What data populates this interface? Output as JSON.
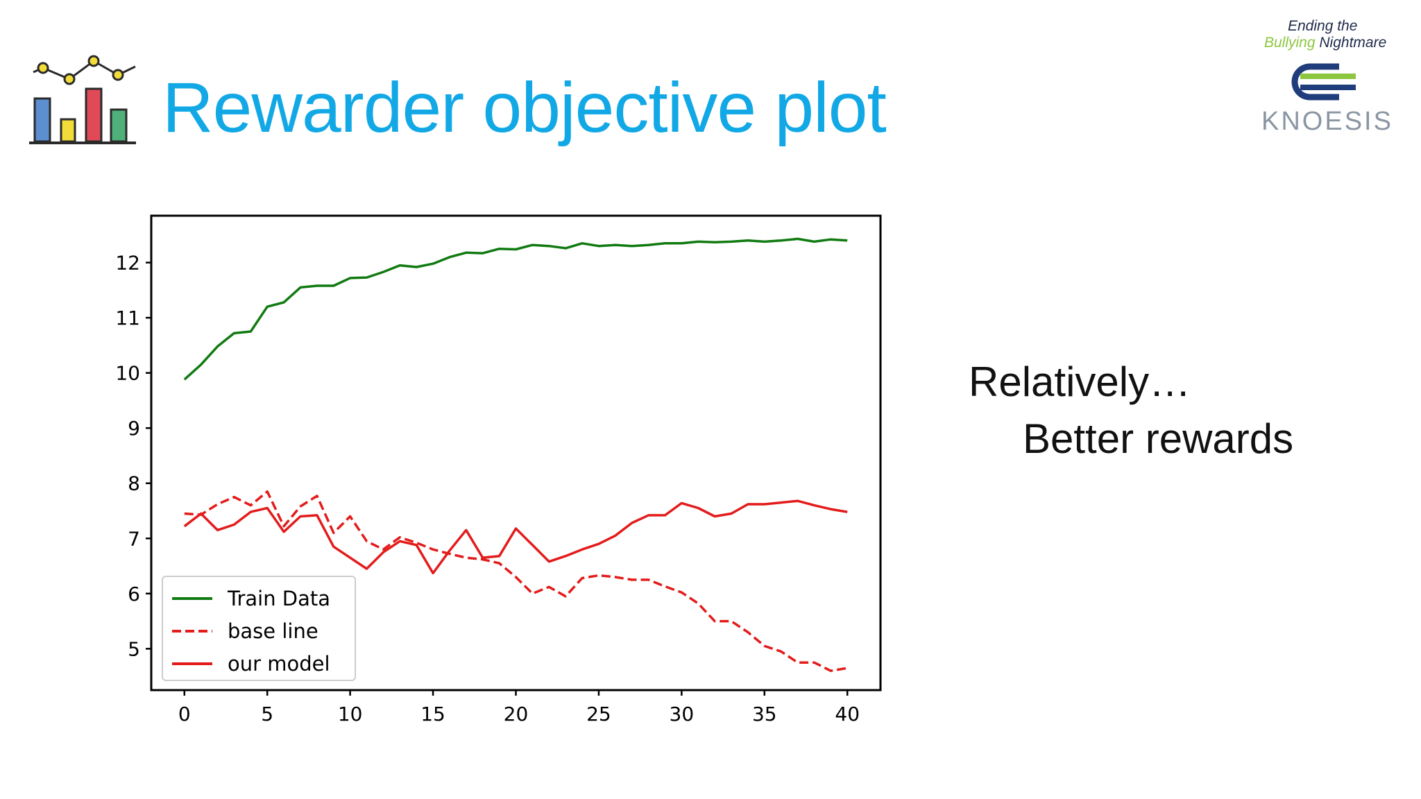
{
  "slide": {
    "title": "Rewarder objective plot",
    "side_text": [
      "Relatively…",
      "Better rewards"
    ]
  },
  "logo": {
    "tagline_line1": "Ending the",
    "tagline_bullying": "Bullying",
    "tagline_nightmare": "Nightmare",
    "wordmark": "KNOESIS"
  },
  "colors": {
    "title": "#12a8e6",
    "train": "#117a11",
    "model": "#e31b1b",
    "icon_bars": [
      "#5b8fd0",
      "#f2dc3a",
      "#e04a56",
      "#4fb07a"
    ]
  },
  "icons": [
    "chart-icon",
    "knoesis-logo"
  ],
  "chart_data": {
    "type": "line",
    "title": "",
    "xlabel": "",
    "ylabel": "",
    "xlim": [
      -2,
      42
    ],
    "ylim": [
      4.25,
      12.85
    ],
    "xticks": [
      0,
      5,
      10,
      15,
      20,
      25,
      30,
      35,
      40
    ],
    "yticks": [
      5,
      6,
      7,
      8,
      9,
      10,
      11,
      12
    ],
    "grid": false,
    "legend_position": "lower-left",
    "x": [
      0,
      1,
      2,
      3,
      4,
      5,
      6,
      7,
      8,
      9,
      10,
      11,
      12,
      13,
      14,
      15,
      16,
      17,
      18,
      19,
      20,
      21,
      22,
      23,
      24,
      25,
      26,
      27,
      28,
      29,
      30,
      31,
      32,
      33,
      34,
      35,
      36,
      37,
      38,
      39,
      40
    ],
    "series": [
      {
        "name": "Train Data",
        "style": "solid",
        "color": "#117a11",
        "values": [
          9.88,
          10.15,
          10.48,
          10.72,
          10.75,
          11.2,
          11.28,
          11.55,
          11.58,
          11.58,
          11.72,
          11.73,
          11.83,
          11.95,
          11.92,
          11.98,
          12.1,
          12.18,
          12.17,
          12.25,
          12.24,
          12.32,
          12.3,
          12.26,
          12.35,
          12.3,
          12.32,
          12.3,
          12.32,
          12.35,
          12.35,
          12.38,
          12.37,
          12.38,
          12.4,
          12.38,
          12.4,
          12.43,
          12.38,
          12.42,
          12.4
        ]
      },
      {
        "name": "base line",
        "style": "dashed",
        "color": "#e31b1b",
        "values": [
          7.45,
          7.43,
          7.62,
          7.75,
          7.6,
          7.85,
          7.22,
          7.58,
          7.77,
          7.1,
          7.4,
          6.95,
          6.8,
          7.02,
          6.92,
          6.8,
          6.72,
          6.65,
          6.62,
          6.55,
          6.3,
          6.0,
          6.12,
          5.95,
          6.28,
          6.33,
          6.3,
          6.25,
          6.25,
          6.13,
          6.02,
          5.82,
          5.5,
          5.5,
          5.3,
          5.05,
          4.95,
          4.75,
          4.75,
          4.6,
          4.65
        ]
      },
      {
        "name": "our model",
        "style": "solid",
        "color": "#e31b1b",
        "values": [
          7.22,
          7.45,
          7.15,
          7.25,
          7.48,
          7.55,
          7.12,
          7.4,
          7.42,
          6.85,
          6.65,
          6.45,
          6.75,
          6.95,
          6.88,
          6.37,
          6.78,
          7.15,
          6.65,
          6.68,
          7.18,
          6.88,
          6.58,
          6.68,
          6.8,
          6.9,
          7.05,
          7.28,
          7.42,
          7.42,
          7.64,
          7.55,
          7.4,
          7.45,
          7.62,
          7.62,
          7.65,
          7.68,
          7.6,
          7.53,
          7.48
        ]
      }
    ]
  }
}
